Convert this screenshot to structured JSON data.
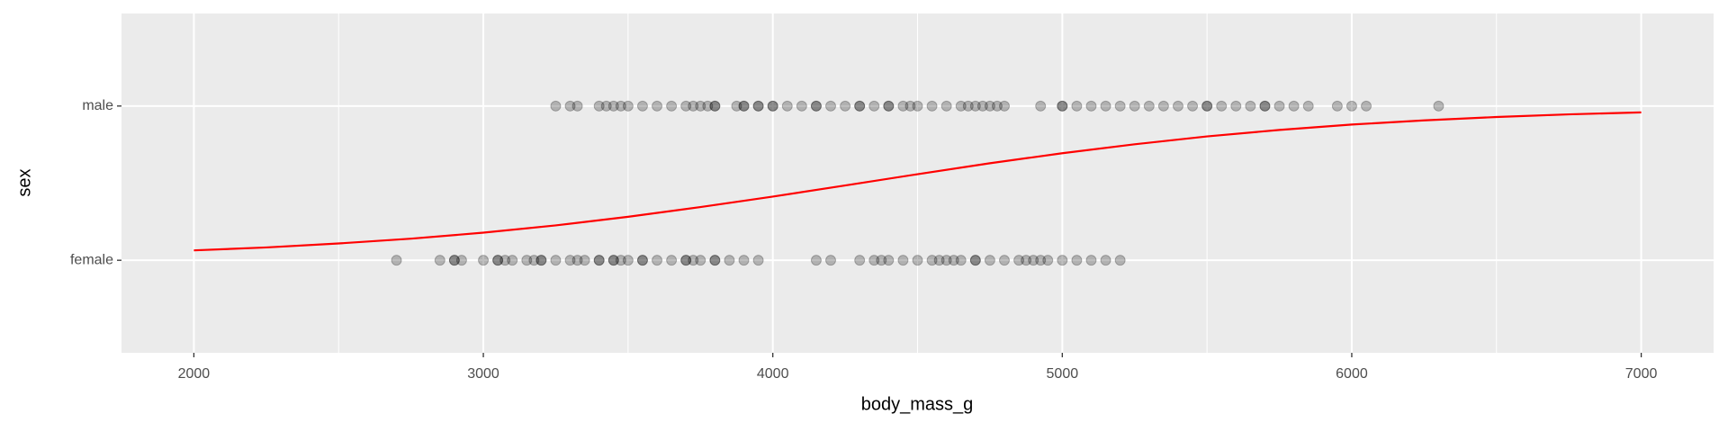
{
  "chart_data": {
    "type": "scatter",
    "xlabel": "body_mass_g",
    "ylabel": "sex",
    "xlim": [
      1750,
      7250
    ],
    "ylim": [
      0.4,
      2.6
    ],
    "xticks": [
      2000,
      3000,
      4000,
      5000,
      6000,
      7000
    ],
    "yticks": [
      {
        "value": 1,
        "label": "female"
      },
      {
        "value": 2,
        "label": "male"
      }
    ],
    "grid": true,
    "panel_color": "#ebebeb",
    "point_color": "#000000",
    "point_opacity": 0.25,
    "groups": [
      {
        "y": 1,
        "x": [
          2700,
          2850,
          2900,
          2900,
          2925,
          3000,
          3050,
          3050,
          3075,
          3100,
          3150,
          3175,
          3200,
          3200,
          3250,
          3300,
          3325,
          3350,
          3400,
          3400,
          3450,
          3450,
          3475,
          3500,
          3550,
          3550,
          3600,
          3650,
          3700,
          3700,
          3725,
          3750,
          3800,
          3800,
          3850,
          3900,
          3950,
          4150,
          4200,
          4300,
          4350,
          4375,
          4400,
          4450,
          4500,
          4550,
          4575,
          4600,
          4625,
          4650,
          4700,
          4700,
          4750,
          4800,
          4850,
          4875,
          4900,
          4925,
          4950,
          5000,
          5050,
          5100,
          5150,
          5200
        ]
      },
      {
        "y": 2,
        "x": [
          3250,
          3300,
          3325,
          3400,
          3425,
          3450,
          3475,
          3500,
          3550,
          3600,
          3650,
          3700,
          3725,
          3750,
          3775,
          3800,
          3800,
          3875,
          3900,
          3900,
          3950,
          3950,
          4000,
          4000,
          4050,
          4100,
          4150,
          4150,
          4200,
          4250,
          4300,
          4300,
          4350,
          4400,
          4400,
          4450,
          4475,
          4500,
          4550,
          4600,
          4650,
          4675,
          4700,
          4725,
          4750,
          4775,
          4800,
          4925,
          5000,
          5000,
          5050,
          5100,
          5150,
          5200,
          5250,
          5300,
          5350,
          5400,
          5450,
          5500,
          5500,
          5550,
          5600,
          5650,
          5700,
          5700,
          5750,
          5800,
          5850,
          5950,
          6000,
          6050,
          6300
        ]
      }
    ],
    "curve": {
      "color": "#ff0000",
      "x": [
        2000,
        2250,
        2500,
        2750,
        3000,
        3250,
        3500,
        3750,
        4000,
        4250,
        4500,
        4750,
        5000,
        5250,
        5500,
        5750,
        6000,
        6250,
        6500,
        6750,
        7000
      ],
      "values": [
        1.064,
        1.083,
        1.109,
        1.14,
        1.179,
        1.226,
        1.282,
        1.345,
        1.413,
        1.485,
        1.558,
        1.629,
        1.694,
        1.752,
        1.803,
        1.845,
        1.88,
        1.907,
        1.929,
        1.946,
        1.959
      ]
    }
  }
}
